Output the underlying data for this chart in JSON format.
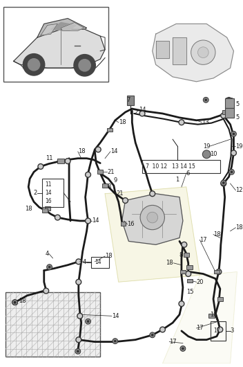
{
  "bg_color": "#ffffff",
  "line_color": "#1a1a1a",
  "fig_width": 3.52,
  "fig_height": 5.3,
  "dpi": 100
}
